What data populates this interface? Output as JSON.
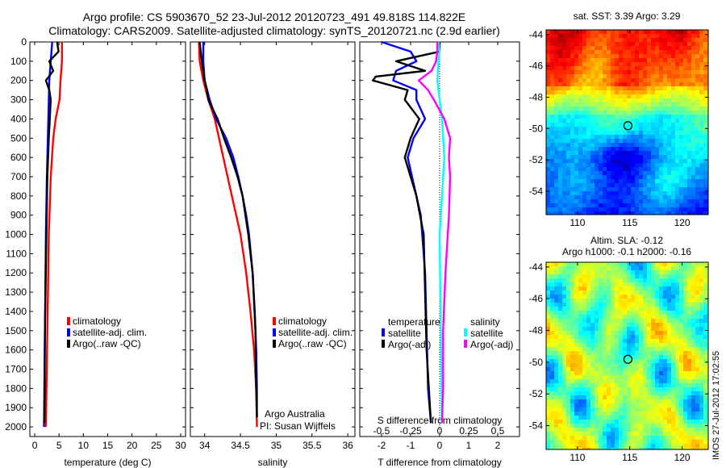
{
  "title": {
    "line1": "Argo profile: CS 5903670_52 23-Jul-2012 20120723_491 49.818S 114.822E",
    "line2": "Climatology: CARS2009. Satellite-adjusted climatology: synTS_20120721.nc (2.9d earlier)"
  },
  "colors": {
    "climatology": "#ff0000",
    "satellite": "#0000ff",
    "argo": "#000000",
    "sal_satellite": "#00ffff",
    "sal_argo": "#ff00ff"
  },
  "chart_data": [
    {
      "type": "line",
      "name": "temperature-profile",
      "xlabel": "temperature (deg C)",
      "ylabel": "",
      "xlim": [
        -1,
        31
      ],
      "ylim": [
        0,
        2050
      ],
      "xticks": [
        0,
        5,
        10,
        15,
        20,
        25,
        30
      ],
      "yticks": [
        0,
        100,
        200,
        300,
        400,
        500,
        600,
        700,
        800,
        900,
        1000,
        1100,
        1200,
        1300,
        1400,
        1500,
        1600,
        1700,
        1800,
        1900,
        2000
      ],
      "legend": [
        "climatology",
        "satellite-adj. clim.",
        "Argo(..raw -QC)"
      ],
      "series": [
        {
          "name": "climatology",
          "depth": [
            0,
            100,
            200,
            300,
            400,
            500,
            700,
            1000,
            1500,
            2000
          ],
          "values": [
            5.6,
            5.6,
            5.3,
            5.1,
            4.3,
            3.8,
            3.3,
            2.9,
            2.6,
            2.3
          ]
        },
        {
          "name": "satellite-adj. clim.",
          "depth": [
            0,
            100,
            200,
            300,
            400,
            500,
            700,
            1000,
            1500,
            2000
          ],
          "values": [
            3.6,
            3.3,
            3.0,
            2.9,
            2.8,
            2.7,
            2.5,
            2.3,
            2.1,
            1.9
          ]
        },
        {
          "name": "Argo(..raw -QC)",
          "depth": [
            0,
            50,
            100,
            150,
            200,
            250,
            300,
            400,
            500,
            700,
            1000,
            1500,
            1980
          ],
          "values": [
            4.6,
            4.9,
            3.0,
            3.8,
            2.3,
            3.0,
            3.3,
            3.1,
            2.9,
            2.6,
            2.4,
            2.1,
            2.0
          ]
        }
      ]
    },
    {
      "type": "line",
      "name": "salinity-profile",
      "xlabel": "salinity",
      "xlim": [
        33.8,
        36.1
      ],
      "ylim": [
        0,
        2050
      ],
      "xticks": [
        "34",
        "34.5",
        "35",
        "35.5",
        "36"
      ],
      "xtick_values": [
        34,
        34.5,
        35,
        35.5,
        36
      ],
      "legend": [
        "climatology",
        "satellite-adj. clim.",
        "Argo(..raw -QC)"
      ],
      "annotation": [
        "Argo Australia",
        "PI: Susan Wijffels"
      ],
      "series": [
        {
          "name": "climatology",
          "depth": [
            0,
            100,
            200,
            300,
            400,
            500,
            600,
            700,
            800,
            900,
            1000,
            1200,
            1400,
            1600,
            1800,
            2000
          ],
          "values": [
            33.92,
            33.93,
            33.98,
            34.05,
            34.14,
            34.2,
            34.26,
            34.32,
            34.38,
            34.44,
            34.5,
            34.58,
            34.64,
            34.69,
            34.72,
            34.73
          ]
        },
        {
          "name": "satellite-adj. clim.",
          "depth": [
            0,
            100,
            200,
            300,
            400,
            500,
            600,
            700,
            800,
            900,
            1000,
            1200,
            1400,
            1600,
            1800,
            1950
          ],
          "values": [
            33.98,
            33.98,
            34.0,
            34.07,
            34.16,
            34.3,
            34.4,
            34.47,
            34.53,
            34.58,
            34.62,
            34.67,
            34.7,
            34.72,
            34.73,
            34.73
          ]
        },
        {
          "name": "Argo(..raw -QC)",
          "depth": [
            0,
            100,
            150,
            200,
            250,
            300,
            400,
            500,
            600,
            700,
            800,
            1000,
            1200,
            1500,
            1800,
            1950
          ],
          "values": [
            33.93,
            33.96,
            33.98,
            34.0,
            34.03,
            34.05,
            34.18,
            34.27,
            34.37,
            34.46,
            34.53,
            34.61,
            34.67,
            34.71,
            34.72,
            34.73
          ]
        }
      ]
    },
    {
      "type": "line",
      "name": "difference-profile",
      "xlabel": "T difference from climatology",
      "top_label": "S difference from climatology",
      "xlim": [
        -2.75,
        2.75
      ],
      "ylim": [
        0,
        2050
      ],
      "xticks": [
        "-2",
        "-1",
        "0",
        "1",
        "2"
      ],
      "xtick_values": [
        -2,
        -1,
        0,
        1,
        2
      ],
      "sticks": [
        "-0.5",
        "-0.25",
        "0",
        "0.25",
        "0.5"
      ],
      "stick_values": [
        -0.5,
        -0.25,
        0,
        0.25,
        0.5
      ],
      "legend_temperature": [
        "temperature",
        "satellite",
        "Argo(-adj)"
      ],
      "legend_salinity": [
        "salinity",
        "satellite",
        "Argo(-adj)"
      ],
      "series": [
        {
          "name": "temperature satellite",
          "depth": [
            0,
            50,
            100,
            150,
            200,
            250,
            300,
            400,
            500,
            600,
            700,
            900,
            1200,
            1500,
            1800,
            1980
          ],
          "values": [
            -2.0,
            -1.0,
            -0.8,
            -1.5,
            -1.6,
            -0.8,
            -0.8,
            -0.5,
            -0.9,
            -1.1,
            -0.95,
            -0.65,
            -0.5,
            -0.45,
            -0.4,
            -0.3
          ]
        },
        {
          "name": "temperature Argo(-adj)",
          "depth": [
            0,
            50,
            100,
            150,
            180,
            200,
            250,
            300,
            400,
            500,
            600,
            800,
            1000,
            1300,
            1600,
            1980
          ],
          "values": [
            0,
            0,
            -1.5,
            -0.5,
            -2.2,
            -2.3,
            -1.1,
            -1.2,
            -0.7,
            -1.0,
            -1.2,
            -0.8,
            -0.55,
            -0.5,
            -0.45,
            -0.3
          ]
        },
        {
          "name": "salinity satellite",
          "depth": [
            0,
            50,
            100,
            200,
            300,
            400,
            600,
            800,
            1000,
            1500,
            1980
          ],
          "values": [
            -0.01,
            0.0,
            -0.01,
            -0.02,
            0.0,
            0.02,
            0.04,
            0.02,
            0.0,
            0.01,
            0.02
          ]
        },
        {
          "name": "salinity Argo(-adj)",
          "depth": [
            0,
            50,
            100,
            150,
            200,
            250,
            300,
            400,
            500,
            600,
            700,
            900,
            1200,
            1500,
            1800,
            1980
          ],
          "values": [
            -0.02,
            -0.02,
            -0.03,
            -0.07,
            -0.18,
            -0.1,
            -0.05,
            0.04,
            0.09,
            0.08,
            0.09,
            0.08,
            0.05,
            0.03,
            0.03,
            0.02
          ]
        }
      ]
    },
    {
      "type": "heatmap",
      "name": "sst-map",
      "title": "sat. SST: 3.39 Argo: 3.29",
      "xticks": [
        "110",
        "115",
        "120"
      ],
      "xtick_values": [
        110,
        115,
        120
      ],
      "yticks": [
        "-44",
        "-46",
        "-48",
        "-50",
        "-52",
        "-54"
      ],
      "ytick_values": [
        -44,
        -46,
        -48,
        -50,
        -52,
        -54
      ],
      "xlim": [
        107,
        122.5
      ],
      "ylim": [
        -55.5,
        -43.7
      ],
      "marker": {
        "lon": 114.822,
        "lat": -49.818
      }
    },
    {
      "type": "heatmap",
      "name": "sla-map",
      "title_line1": "Altim. SLA: -0.12",
      "title_line2": "Argo h1000: -0.1 h2000: -0.16",
      "xticks": [
        "110",
        "115",
        "120"
      ],
      "xtick_values": [
        110,
        115,
        120
      ],
      "yticks": [
        "-44",
        "-46",
        "-48",
        "-50",
        "-52",
        "-54"
      ],
      "ytick_values": [
        -44,
        -46,
        -48,
        -50,
        -52,
        -54
      ],
      "xlim": [
        107,
        122.5
      ],
      "ylim": [
        -55.5,
        -43.7
      ],
      "marker": {
        "lon": 114.822,
        "lat": -49.818
      }
    }
  ],
  "side_label": "IMOS 27-Jul-2012 17:02:55"
}
